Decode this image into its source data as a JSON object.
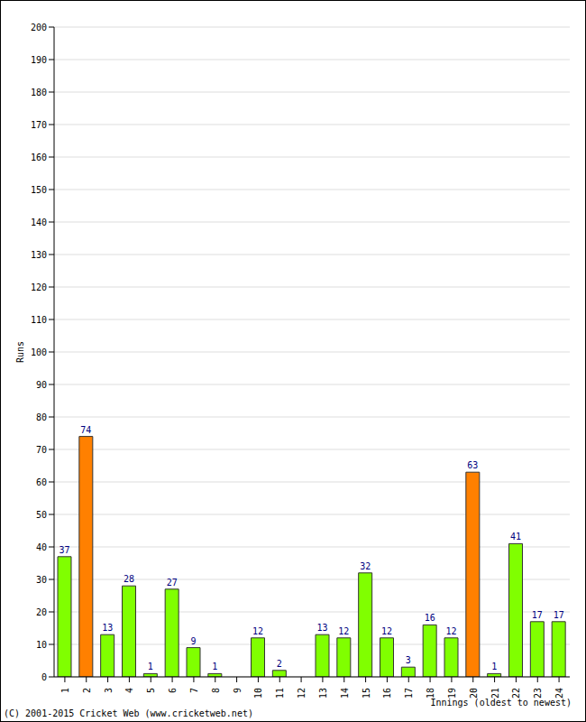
{
  "chart_data": {
    "type": "bar",
    "x_label": "Innings (oldest to newest)",
    "y_label": "Runs",
    "annotations": [
      "(C) 2001-2015 Cricket Web (www.cricketweb.net)"
    ],
    "categories": [
      "1",
      "2",
      "3",
      "4",
      "5",
      "6",
      "7",
      "8",
      "9",
      "10",
      "11",
      "12",
      "13",
      "14",
      "15",
      "16",
      "17",
      "18",
      "19",
      "20",
      "21",
      "22",
      "23",
      "24"
    ],
    "values": [
      37,
      74,
      13,
      28,
      1,
      27,
      9,
      1,
      0,
      12,
      2,
      0,
      13,
      12,
      32,
      12,
      3,
      16,
      12,
      63,
      1,
      41,
      17,
      17
    ],
    "colors": [
      "#80ff00",
      "#ff8000",
      "#80ff00",
      "#80ff00",
      "#80ff00",
      "#80ff00",
      "#80ff00",
      "#80ff00",
      "#80ff00",
      "#80ff00",
      "#80ff00",
      "#80ff00",
      "#80ff00",
      "#80ff00",
      "#80ff00",
      "#80ff00",
      "#80ff00",
      "#80ff00",
      "#80ff00",
      "#ff8000",
      "#80ff00",
      "#80ff00",
      "#80ff00",
      "#80ff00"
    ],
    "ylim": [
      0,
      200
    ],
    "yticks": [
      0,
      10,
      20,
      30,
      40,
      50,
      60,
      70,
      80,
      90,
      100,
      110,
      120,
      130,
      140,
      150,
      160,
      170,
      180,
      190,
      200
    ],
    "grid": true,
    "data_labels": true
  }
}
